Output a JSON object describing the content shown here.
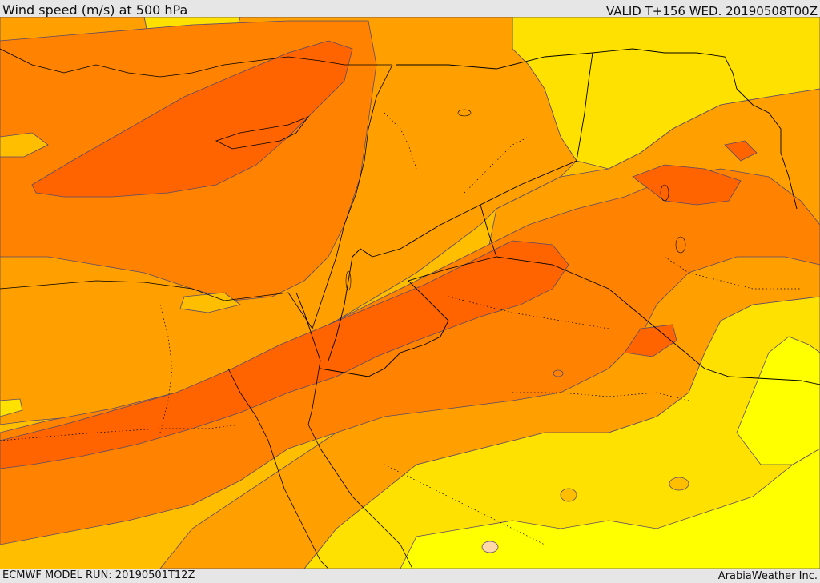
{
  "header": {
    "title": "Wind speed (m/s) at 500 hPa",
    "valid": "VALID T+156 WED. 20190508T00Z"
  },
  "footer": {
    "model_run": "ECMWF MODEL RUN: 20190501T12Z",
    "credit": "ArabiaWeather Inc."
  },
  "colors": {
    "band_yellow": "#ffff00",
    "band_gold": "#ffe100",
    "band_amber": "#ffbf00",
    "band_orange_light": "#ffa000",
    "band_orange": "#ff8200",
    "band_orange_dark": "#ff6400",
    "band_peach": "#ffd8a8",
    "contour_line": "#5a4a6a",
    "border_line": "#000000"
  }
}
